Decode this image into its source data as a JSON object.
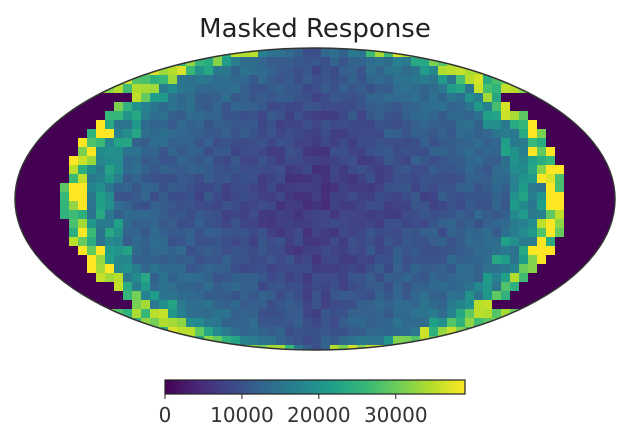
{
  "chart_data": {
    "type": "heatmap",
    "projection": "mollweide",
    "title": "Masked Response",
    "colormap": "viridis",
    "colorbar": {
      "orientation": "horizontal",
      "placement": "bottom",
      "range": [
        0,
        39000
      ],
      "ticks": [
        0,
        10000,
        20000,
        30000
      ],
      "tick_labels": [
        "0",
        "10000",
        "20000",
        "30000"
      ]
    },
    "masked_regions": [
      "left limb (lon ±180° side)",
      "right limb"
    ],
    "typical_values": {
      "center": 6000,
      "mid_band": 12000,
      "limb_edge": 30000,
      "limb_max": 39000
    }
  },
  "colors": {
    "outline": "#333333",
    "background": "#ffffff"
  }
}
